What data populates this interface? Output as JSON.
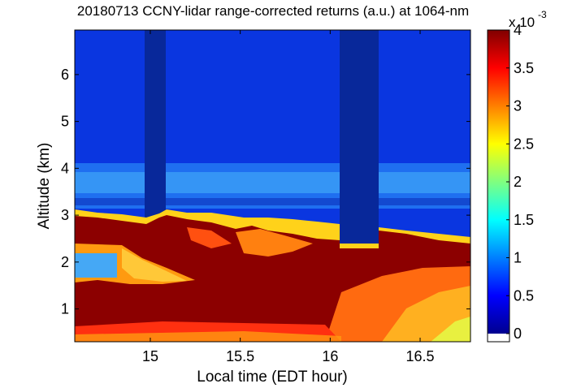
{
  "chart_data": {
    "type": "heatmap",
    "title": "20180713 CCNY-lidar range-corrected returns (a.u.) at 1064-nm",
    "xlabel": "Local time (EDT hour)",
    "ylabel": "Altitude (km)",
    "xlim": [
      14.58,
      16.78
    ],
    "ylim": [
      0.3,
      6.95
    ],
    "x_ticks": [
      15,
      15.5,
      16,
      16.5
    ],
    "x_tick_labels": [
      "15",
      "15.5",
      "16",
      "16.5"
    ],
    "y_ticks": [
      1,
      2,
      3,
      4,
      5,
      6
    ],
    "y_tick_labels": [
      "1",
      "2",
      "3",
      "4",
      "5",
      "6"
    ],
    "colorbar": {
      "colormap": "jet",
      "range": [
        0,
        0.004
      ],
      "ticks": [
        0,
        0.5,
        1,
        1.5,
        2,
        2.5,
        3,
        3.5,
        4
      ],
      "tick_labels": [
        "0",
        "0.5",
        "1",
        "1.5",
        "2",
        "2.5",
        "3",
        "3.5",
        "4"
      ],
      "multiplier_label": "x 10",
      "multiplier_exponent": "-3"
    },
    "structure": {
      "boundary_layer_top_km": [
        [
          14.6,
          2.95
        ],
        [
          14.8,
          2.9
        ],
        [
          14.95,
          2.92
        ],
        [
          15.05,
          3.0
        ],
        [
          15.2,
          2.95
        ],
        [
          15.4,
          2.8
        ],
        [
          15.6,
          2.7
        ],
        [
          15.8,
          2.65
        ],
        [
          15.95,
          2.6
        ],
        [
          16.03,
          2.35
        ],
        [
          16.25,
          2.3
        ],
        [
          16.35,
          2.65
        ],
        [
          16.5,
          2.6
        ],
        [
          16.78,
          2.55
        ]
      ],
      "elevated_aerosol_layer_km": [
        3.3,
        4.1
      ],
      "low_signal_gaps_hours": [
        [
          14.97,
          15.08
        ],
        [
          16.04,
          16.25
        ]
      ]
    }
  }
}
